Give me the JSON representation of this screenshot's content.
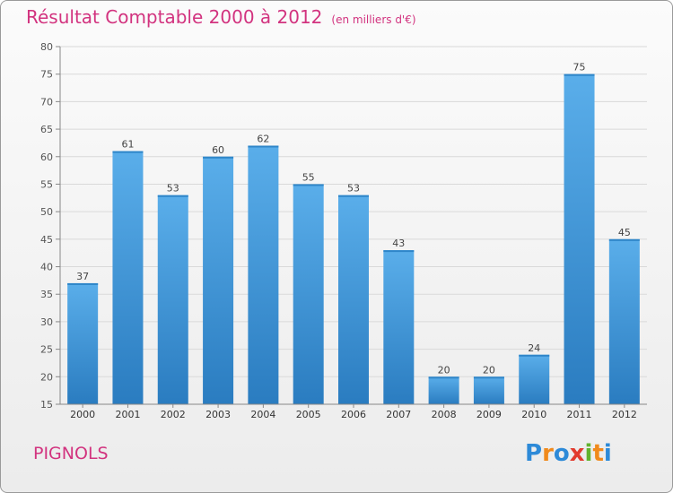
{
  "header": {
    "title": "Résultat Comptable 2000 à 2012",
    "subtitle": "(en milliers d'€)"
  },
  "footer": {
    "commune": "PIGNOLS",
    "logo": [
      "P",
      "r",
      "o",
      "x",
      "i",
      "t",
      "i"
    ]
  },
  "colors": {
    "title": "#d2337f",
    "bar_light": "#5aaeea",
    "bar_dark": "#2a7cc0",
    "grid": "#d9d9d9",
    "logo": [
      "#2d8ad8",
      "#f08a1c",
      "#2d8ad8",
      "#e23b2e",
      "#62b32e",
      "#f08a1c",
      "#2d8ad8"
    ]
  },
  "chart_data": {
    "type": "bar",
    "categories": [
      "2000",
      "2001",
      "2002",
      "2003",
      "2004",
      "2005",
      "2006",
      "2007",
      "2008",
      "2009",
      "2010",
      "2011",
      "2012"
    ],
    "values": [
      37,
      61,
      53,
      60,
      62,
      55,
      53,
      43,
      20,
      20,
      24,
      75,
      45
    ],
    "ylim": [
      15,
      80
    ],
    "yticks": [
      15,
      20,
      25,
      30,
      35,
      40,
      45,
      50,
      55,
      60,
      65,
      70,
      75,
      80
    ],
    "grid": true,
    "xlabel": "",
    "ylabel": ""
  }
}
